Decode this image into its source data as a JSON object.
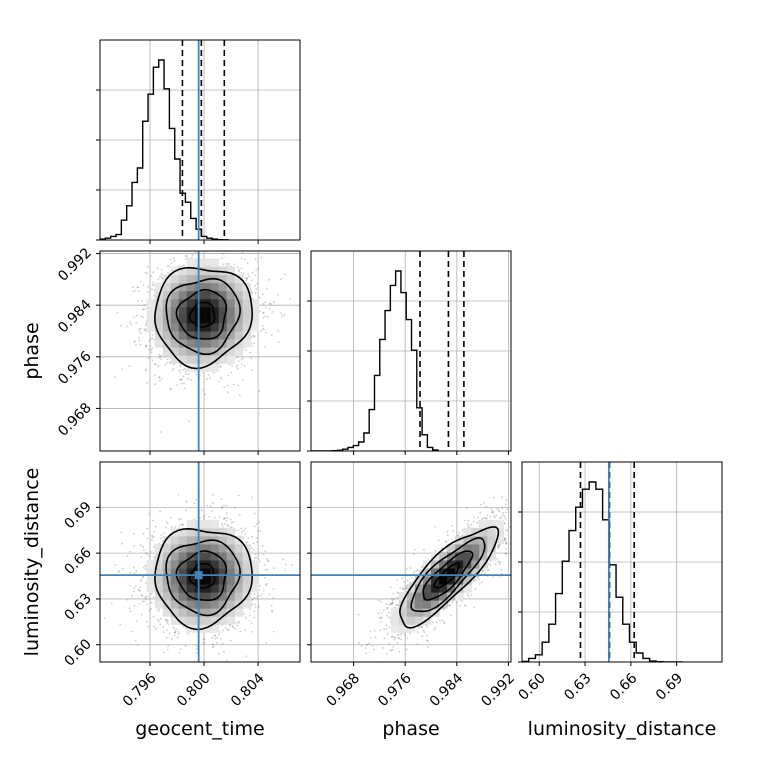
{
  "chart_data": {
    "type": "corner",
    "parameters": [
      "geocent_time",
      "phase",
      "luminosity_distance"
    ],
    "truths": {
      "geocent_time": 0.7996,
      "phase": null,
      "luminosity_distance": 0.6456
    },
    "ranges": {
      "geocent_time": [
        0.7923,
        0.8071
      ],
      "phase": [
        0.9614,
        0.9924
      ],
      "luminosity_distance": [
        0.5887,
        0.7197
      ]
    },
    "ticks": {
      "geocent_time": [
        0.796,
        0.8,
        0.804
      ],
      "phase": [
        0.968,
        0.976,
        0.984,
        0.992
      ],
      "luminosity_distance": [
        0.6,
        0.63,
        0.66,
        0.69
      ]
    },
    "tick_labels": {
      "geocent_time": [
        "0.796",
        "0.800",
        "0.804"
      ],
      "phase": [
        "0.968",
        "0.976",
        "0.984",
        "0.992"
      ],
      "luminosity_distance": [
        "0.60",
        "0.63",
        "0.66",
        "0.69"
      ]
    },
    "quantiles": {
      "geocent_time": [
        0.7984,
        0.7998,
        0.8015
      ],
      "phase": [
        0.9783,
        0.9827,
        0.9851
      ],
      "luminosity_distance": [
        0.627,
        0.646,
        0.6622
      ]
    },
    "marginals": {
      "geocent_time": {
        "edges_start": 0.7923,
        "bin_width": 0.000395,
        "counts": [
          0.5,
          1,
          2,
          3,
          11,
          19,
          32,
          40,
          66,
          81,
          96,
          100,
          84,
          62,
          45,
          26,
          21,
          12,
          6,
          2,
          1,
          0.5,
          0.2,
          0.1
        ]
      },
      "phase": {
        "edges_start": 0.9614,
        "bin_width": 0.00082,
        "counts": [
          0,
          0,
          0,
          0,
          0.2,
          0.4,
          1,
          2,
          3,
          5,
          10,
          23,
          42,
          62,
          78,
          92,
          100,
          88,
          73,
          56,
          24,
          9,
          2,
          0.6
        ]
      },
      "luminosity_distance": {
        "edges_start": 0.5887,
        "bin_width": 0.0044,
        "counts": [
          0.3,
          2,
          4,
          11,
          21,
          38,
          56,
          73,
          86,
          96,
          100,
          96,
          79,
          54,
          36,
          21,
          11,
          5,
          2,
          0.5,
          0.2,
          0,
          0,
          0
        ]
      }
    },
    "correlations": {
      "geocent_time|phase": 0.05,
      "geocent_time|luminosity_distance": 0.02,
      "phase|luminosity_distance": 0.82
    },
    "sigmas": {
      "geocent_time": 0.0018,
      "phase": 0.0038,
      "luminosity_distance": 0.016
    },
    "means": {
      "geocent_time": 0.7999,
      "phase": 0.9825,
      "luminosity_distance": 0.645
    },
    "xlabels": [
      "geocent_time",
      "phase",
      "luminosity_distance"
    ],
    "ylabels": [
      "phase",
      "luminosity_distance"
    ],
    "colors": {
      "truth": "#4682b4",
      "hist": "#000000",
      "grid": "#b0b0b0"
    }
  }
}
